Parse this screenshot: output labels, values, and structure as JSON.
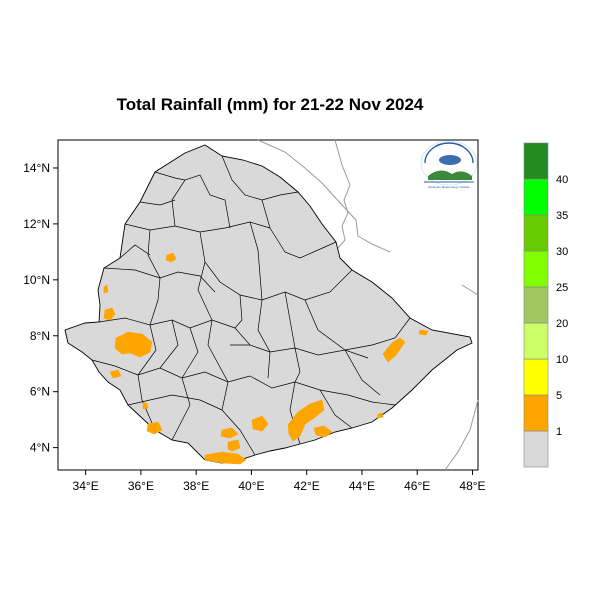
{
  "title": "Total Rainfall (mm) for 21-22 Nov 2024",
  "lon_ticks": [
    "34°E",
    "36°E",
    "38°E",
    "40°E",
    "42°E",
    "44°E",
    "46°E",
    "48°E"
  ],
  "lat_ticks": [
    "14°N",
    "12°N",
    "10°N",
    "8°N",
    "6°N",
    "4°N"
  ],
  "lon_range": [
    33,
    48.2
  ],
  "lat_range": [
    3.2,
    15
  ],
  "legend": {
    "labels": [
      "1",
      "5",
      "10",
      "20",
      "25",
      "30",
      "35",
      "40"
    ],
    "colors": [
      "#d9d9d9",
      "#ffa500",
      "#ffff00",
      "#ccff66",
      "#a0c860",
      "#80ff00",
      "#66cc00",
      "#00ff00",
      "#228b22"
    ]
  },
  "colors": {
    "land": "#d9d9d9",
    "rain_1_5": "#ffa500",
    "boundary": "#000000",
    "coast": "#9a9a9a"
  },
  "logo": {
    "caption": "Ethiopian Meteorology Institute"
  }
}
